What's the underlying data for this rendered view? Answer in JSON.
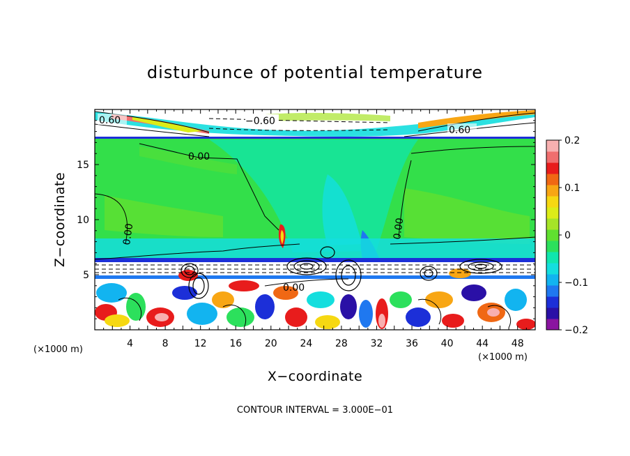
{
  "chart_data": {
    "type": "heatmap",
    "title": "disturbunce of potential temperature",
    "xlabel": "X−coordinate",
    "ylabel": "Z−coordinate",
    "x_unit": "(×1000 m)",
    "z_unit": "(×1000 m)",
    "xlim": [
      0,
      50
    ],
    "ylim": [
      0,
      20
    ],
    "x_ticks": [
      "4",
      "8",
      "12",
      "16",
      "20",
      "24",
      "28",
      "32",
      "36",
      "40",
      "44",
      "48"
    ],
    "y_ticks": [
      "5",
      "10",
      "15"
    ],
    "colorbar": {
      "range": [
        -0.2,
        0.2
      ],
      "tick_labels": [
        "0.2",
        "0.1",
        "0",
        "−0.1",
        "−0.2"
      ],
      "colors": [
        "#8a14a0",
        "#2a10a6",
        "#1c2fd8",
        "#1f78f0",
        "#12b4f0",
        "#14dede",
        "#10e6ae",
        "#2ce05c",
        "#60e030",
        "#a6e428",
        "#dcec18",
        "#f6d812",
        "#f8a614",
        "#f06814",
        "#e81c1c",
        "#f06e6e",
        "#f8b0b0"
      ]
    },
    "contour_labels": [
      "0.60",
      "−0.60",
      "0.60",
      "0.00",
      "0.00",
      "0.00",
      "0.00"
    ],
    "contour_interval_note": "CONTOUR INTERVAL = 3.000E−01",
    "grid": false
  }
}
